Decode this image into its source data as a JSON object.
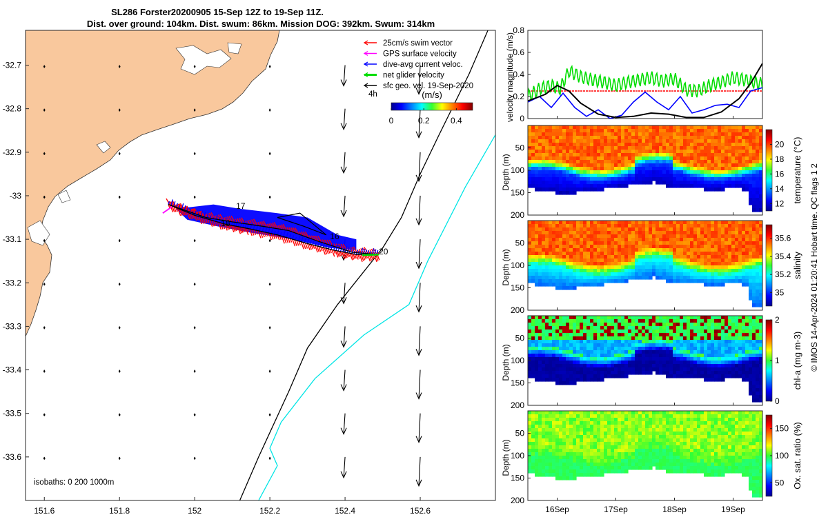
{
  "title": {
    "line1": "SL286 Forster20200905 15-Sep 12Z to 19-Sep 11Z.",
    "line2": "Dist. over ground: 104km. Dist. swum: 86km. Mission DOG: 392km. Swum: 314km"
  },
  "credit": "© IMOS 14-Apr-2024 01:20:41 Hobart time. QC flags 1  2",
  "colors": {
    "land": "#f9c89d",
    "swim": "#ff0000",
    "gps": "#ff00ff",
    "current": "#0000ff",
    "net": "#00dd00",
    "isobath200": "#000000",
    "isobath1000": "#00e5e5"
  },
  "chart_data": [
    {
      "type": "map",
      "xlim": [
        151.55,
        152.8
      ],
      "ylim": [
        -33.7,
        -32.62
      ],
      "x_ticks": [
        "151.6",
        "151.8",
        "152",
        "152.2",
        "152.4",
        "152.6"
      ],
      "x_tick_values": [
        151.6,
        151.8,
        152.0,
        152.2,
        152.4,
        152.6
      ],
      "y_ticks": [
        "-32.7",
        "-32.8",
        "-32.9",
        "-33",
        "-33.1",
        "-33.2",
        "-33.3",
        "-33.4",
        "-33.5",
        "-33.6"
      ],
      "y_tick_values": [
        -32.7,
        -32.8,
        -32.9,
        -33.0,
        -33.1,
        -33.2,
        -33.3,
        -33.4,
        -33.5,
        -33.6
      ],
      "legend": [
        {
          "label": "25cm/s swim vector",
          "color": "#ff0000"
        },
        {
          "label": "GPS surface velocity",
          "color": "#ff00ff"
        },
        {
          "label": "dive-avg current veloc.",
          "color": "#0000ff"
        },
        {
          "label": "net glider velocity",
          "color": "#00dd00"
        },
        {
          "label": "sfc geo. vel. 19-Sep-2020",
          "color": "#000000"
        }
      ],
      "legend_scale_label": "4h",
      "colorbar": {
        "label": "(m/s)",
        "ticks": [
          "0",
          "0.2",
          "0.4"
        ],
        "range": [
          0,
          0.5
        ]
      },
      "isobath_note": "isobaths: 0   200  1000m",
      "track_day_labels": [
        {
          "text": "17",
          "lon": 152.11,
          "lat": -33.03
        },
        {
          "text": "18",
          "lon": 152.07,
          "lat": -33.07
        },
        {
          "text": "16",
          "lon": 152.36,
          "lat": -33.1
        },
        {
          "text": "20",
          "lon": 152.49,
          "lat": -33.135
        }
      ],
      "glider_track": [
        [
          151.93,
          -33.02
        ],
        [
          152.0,
          -33.045
        ],
        [
          152.08,
          -33.065
        ],
        [
          152.14,
          -33.075
        ],
        [
          152.22,
          -33.09
        ],
        [
          152.3,
          -33.11
        ],
        [
          152.37,
          -33.125
        ],
        [
          152.43,
          -33.135
        ],
        [
          152.49,
          -33.135
        ],
        [
          152.42,
          -33.13
        ],
        [
          152.33,
          -33.105
        ],
        [
          152.25,
          -33.08
        ],
        [
          152.18,
          -33.07
        ],
        [
          152.1,
          -33.06
        ],
        [
          152.03,
          -33.05
        ],
        [
          151.98,
          -33.035
        ],
        [
          151.93,
          -33.02
        ]
      ],
      "dive_loop": [
        [
          152.22,
          -33.05
        ],
        [
          152.28,
          -33.04
        ],
        [
          152.35,
          -33.09
        ],
        [
          152.29,
          -33.07
        ],
        [
          152.22,
          -33.05
        ]
      ],
      "geo_vectors": {
        "lons": [
          151.6,
          151.8,
          152.0,
          152.2,
          152.4,
          152.6,
          152.8
        ],
        "lats": [
          -32.7,
          -32.8,
          -32.9,
          -33.0,
          -33.1,
          -33.2,
          -33.3,
          -33.4,
          -33.5,
          -33.6
        ],
        "offshore_lons": [
          152.4,
          152.6,
          152.8
        ]
      },
      "isobath_200": [
        [
          152.78,
          -32.62
        ],
        [
          152.73,
          -32.72
        ],
        [
          152.65,
          -32.86
        ],
        [
          152.6,
          -32.95
        ],
        [
          152.55,
          -33.05
        ],
        [
          152.5,
          -33.12
        ],
        [
          152.38,
          -33.25
        ],
        [
          152.3,
          -33.35
        ],
        [
          152.25,
          -33.45
        ],
        [
          152.17,
          -33.6
        ],
        [
          152.12,
          -33.7
        ]
      ],
      "isobath_1000": [
        [
          152.8,
          -32.86
        ],
        [
          152.72,
          -32.98
        ],
        [
          152.62,
          -33.15
        ],
        [
          152.57,
          -33.25
        ],
        [
          152.45,
          -33.32
        ],
        [
          152.32,
          -33.42
        ],
        [
          152.23,
          -33.52
        ],
        [
          152.2,
          -33.58
        ],
        [
          152.22,
          -33.62
        ],
        [
          152.17,
          -33.7
        ]
      ]
    },
    {
      "type": "line",
      "ylabel": "velocity magnitude (m/s)",
      "ylim": [
        0,
        0.8
      ],
      "y_ticks": [
        "0",
        "0.2",
        "0.4",
        "0.6",
        "0.8"
      ],
      "xlim": [
        15.5,
        19.5
      ],
      "series": [
        {
          "color": "#ff0000",
          "x": [
            15.5,
            19.5
          ],
          "y": [
            0.25,
            0.25
          ]
        },
        {
          "color": "#00dd00",
          "x": [
            15.5,
            15.7,
            15.9,
            16.05,
            16.2,
            16.4,
            16.6,
            16.8,
            17.0,
            17.2,
            17.4,
            17.6,
            17.8,
            18.0,
            18.2,
            18.4,
            18.6,
            18.8,
            19.0,
            19.2,
            19.5
          ],
          "y": [
            0.2,
            0.27,
            0.3,
            0.27,
            0.43,
            0.38,
            0.35,
            0.33,
            0.3,
            0.33,
            0.35,
            0.37,
            0.34,
            0.36,
            0.26,
            0.25,
            0.3,
            0.33,
            0.37,
            0.35,
            0.31
          ]
        },
        {
          "color": "#0000ff",
          "x": [
            15.5,
            15.7,
            15.9,
            16.1,
            16.3,
            16.5,
            16.7,
            16.9,
            17.1,
            17.3,
            17.5,
            17.7,
            17.9,
            18.1,
            18.3,
            18.5,
            18.7,
            18.9,
            19.1,
            19.3,
            19.5
          ],
          "y": [
            0.15,
            0.2,
            0.1,
            0.23,
            0.1,
            0.02,
            0.08,
            0.0,
            0.03,
            0.15,
            0.24,
            0.15,
            0.08,
            0.2,
            0.05,
            0.08,
            0.12,
            0.13,
            0.1,
            0.25,
            0.28
          ]
        },
        {
          "color": "#000000",
          "x": [
            15.5,
            15.8,
            16.0,
            16.2,
            16.4,
            16.7,
            17.0,
            17.3,
            17.6,
            17.9,
            18.2,
            18.5,
            18.8,
            19.1,
            19.3,
            19.5
          ],
          "y": [
            0.16,
            0.22,
            0.3,
            0.25,
            0.14,
            0.04,
            0.01,
            0.02,
            0.05,
            0.04,
            0.01,
            0.01,
            0.06,
            0.18,
            0.32,
            0.5
          ]
        }
      ]
    },
    {
      "type": "heatmap",
      "ylabel": "Depth (m)",
      "ylim": [
        0,
        200
      ],
      "y_ticks": [
        "50",
        "100",
        "150",
        "200"
      ],
      "colorbar_label": "temperature (°C)",
      "colorbar_ticks": [
        "12",
        "14",
        "16",
        "18",
        "20"
      ],
      "crange": [
        11,
        22
      ],
      "surface_value": 19.5,
      "deep_value": 13.0,
      "mld": 95
    },
    {
      "type": "heatmap",
      "ylabel": "Depth (m)",
      "ylim": [
        0,
        200
      ],
      "y_ticks": [
        "50",
        "100",
        "150",
        "200"
      ],
      "colorbar_label": "salinity",
      "colorbar_ticks": [
        "35",
        "35.2",
        "35.4",
        "35.6"
      ],
      "crange": [
        34.85,
        35.75
      ],
      "surface_value": 35.55,
      "deep_value": 35.2,
      "mld": 95
    },
    {
      "type": "heatmap",
      "ylabel": "Depth (m)",
      "ylim": [
        0,
        200
      ],
      "y_ticks": [
        "50",
        "100",
        "150",
        "200"
      ],
      "colorbar_label": "chl-a (mg m-3)",
      "colorbar_ticks": [
        "0",
        "1",
        "2"
      ],
      "crange": [
        0,
        2
      ],
      "surface_value": 1.0,
      "deep_value": 0.05,
      "mld": 90
    },
    {
      "type": "heatmap",
      "ylabel": "Depth (m)",
      "ylim": [
        0,
        200
      ],
      "y_ticks": [
        "50",
        "100",
        "150",
        "200"
      ],
      "colorbar_label": "Ox. sat. ratio (%)",
      "colorbar_ticks": [
        "50",
        "100",
        "150"
      ],
      "crange": [
        25,
        175
      ],
      "surface_value": 108,
      "deep_value": 98,
      "mld": 95
    }
  ],
  "time_axis": {
    "ticks": [
      "16Sep",
      "17Sep",
      "18Sep",
      "19Sep"
    ],
    "tick_values": [
      16,
      17,
      18,
      19
    ],
    "xlim": [
      15.5,
      19.5
    ]
  },
  "profile_floor": {
    "x": [
      15.5,
      15.8,
      16.0,
      16.3,
      16.6,
      17.0,
      17.3,
      17.6,
      17.65,
      17.7,
      18.0,
      18.4,
      18.8,
      19.1,
      19.25,
      19.3,
      19.35,
      19.5
    ],
    "depth": [
      140,
      145,
      150,
      150,
      146,
      138,
      133,
      130,
      120,
      130,
      140,
      142,
      143,
      140,
      145,
      185,
      190,
      190
    ]
  }
}
